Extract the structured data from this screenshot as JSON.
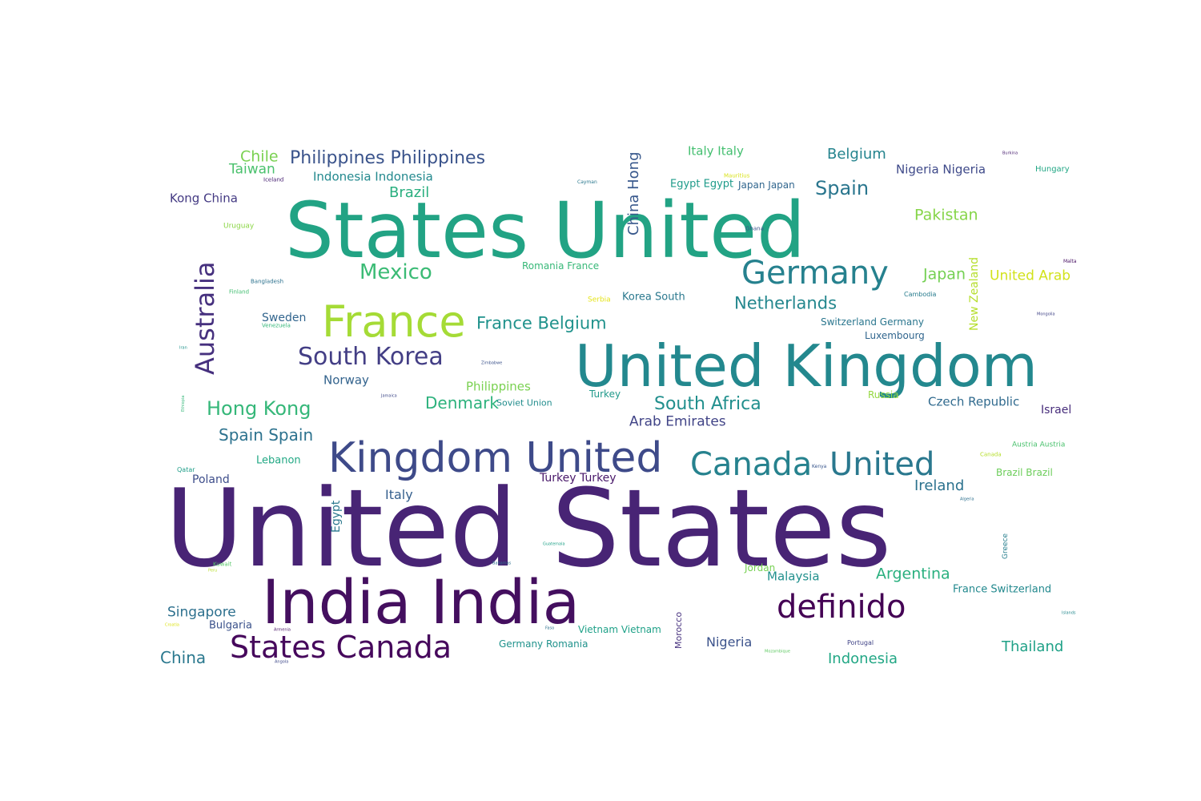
{
  "words": [
    {
      "text": "United States",
      "color": "#482475"
    },
    {
      "text": "States United",
      "color": "#22a384"
    },
    {
      "text": "United Kingdom",
      "color": "#23888e"
    },
    {
      "text": "Kingdom United",
      "color": "#3e4a89"
    },
    {
      "text": "India India",
      "color": "#440f5f"
    },
    {
      "text": "France",
      "color": "#a5db36"
    },
    {
      "text": "Germany",
      "color": "#26818e"
    },
    {
      "text": "Canada",
      "color": "#26828e"
    },
    {
      "text": "United",
      "color": "#2a788e"
    },
    {
      "text": "definido",
      "color": "#440154"
    },
    {
      "text": "States Canada",
      "color": "#46085c"
    },
    {
      "text": "South Korea",
      "color": "#433e85"
    },
    {
      "text": "Australia",
      "color": "#46307e"
    },
    {
      "text": "Mexico",
      "color": "#3bbb75"
    },
    {
      "text": "Philippines Philippines",
      "color": "#3a538b"
    },
    {
      "text": "Hong Kong",
      "color": "#35b779"
    },
    {
      "text": "South Africa",
      "color": "#218f8d"
    },
    {
      "text": "France Belgium",
      "color": "#20928c"
    },
    {
      "text": "Netherlands",
      "color": "#24878e"
    },
    {
      "text": "Spain",
      "color": "#2a768e"
    },
    {
      "text": "Denmark",
      "color": "#2db27d"
    },
    {
      "text": "Spain Spain",
      "color": "#2c728e"
    },
    {
      "text": "Argentina",
      "color": "#2ab07f"
    },
    {
      "text": "Arab Emirates",
      "color": "#414487"
    },
    {
      "text": "Pakistan",
      "color": "#86d549"
    },
    {
      "text": "Japan",
      "color": "#75d054"
    },
    {
      "text": "United Arab",
      "color": "#d2e21b"
    },
    {
      "text": "Belgium",
      "color": "#25848e"
    },
    {
      "text": "Brazil",
      "color": "#29af7f"
    },
    {
      "text": "Chile",
      "color": "#7ad151"
    },
    {
      "text": "Taiwan",
      "color": "#4ac16d"
    },
    {
      "text": "Singapore",
      "color": "#2d708e"
    },
    {
      "text": "China",
      "color": "#2a788e"
    },
    {
      "text": "Thailand",
      "color": "#1fa187"
    },
    {
      "text": "Indonesia",
      "color": "#22a785"
    },
    {
      "text": "Ireland",
      "color": "#2c728e"
    },
    {
      "text": "Nigeria",
      "color": "#3b528b"
    },
    {
      "text": "Malaysia",
      "color": "#21908d"
    },
    {
      "text": "Italy Italy",
      "color": "#44bf70"
    },
    {
      "text": "Indonesia Indonesia",
      "color": "#23898e"
    },
    {
      "text": "Kong China",
      "color": "#443a83"
    },
    {
      "text": "Nigeria Nigeria",
      "color": "#3e4989"
    },
    {
      "text": "Egypt Egypt",
      "color": "#1e9b8a"
    },
    {
      "text": "Japan Japan",
      "color": "#31668e"
    },
    {
      "text": "Hungary",
      "color": "#22a785"
    },
    {
      "text": "Korea South",
      "color": "#2a788e"
    },
    {
      "text": "Romania France",
      "color": "#37b878"
    },
    {
      "text": "Switzerland Germany",
      "color": "#2a768e"
    },
    {
      "text": "Luxembourg",
      "color": "#31668e"
    },
    {
      "text": "Norway",
      "color": "#33638d"
    },
    {
      "text": "Philippines",
      "color": "#7ad151"
    },
    {
      "text": "Sweden",
      "color": "#32658e"
    },
    {
      "text": "Czech Republic",
      "color": "#306a8e"
    },
    {
      "text": "Israel",
      "color": "#472d7b"
    },
    {
      "text": "Russia",
      "color": "#95d840"
    },
    {
      "text": "Turkey",
      "color": "#1f998a"
    },
    {
      "text": "Soviet Union",
      "color": "#228d8d"
    },
    {
      "text": "Lebanon",
      "color": "#22a884"
    },
    {
      "text": "Poland",
      "color": "#3d4d8a"
    },
    {
      "text": "Italy",
      "color": "#355f8d"
    },
    {
      "text": "Turkey Turkey",
      "color": "#481769"
    },
    {
      "text": "Brazil Brazil",
      "color": "#6ccd5a"
    },
    {
      "text": "Austria Austria",
      "color": "#4ac16d"
    },
    {
      "text": "France Switzerland",
      "color": "#23898e"
    },
    {
      "text": "Jordan",
      "color": "#77d153"
    },
    {
      "text": "Bulgaria",
      "color": "#3b528b"
    },
    {
      "text": "Germany Romania",
      "color": "#20928c"
    },
    {
      "text": "Vietnam Vietnam",
      "color": "#1fa188"
    },
    {
      "text": "Uruguay",
      "color": "#8bd646"
    },
    {
      "text": "Bangladesh",
      "color": "#2c718e"
    },
    {
      "text": "Finland",
      "color": "#42be71"
    },
    {
      "text": "Venezuela",
      "color": "#35b779"
    },
    {
      "text": "Serbia",
      "color": "#e5e419"
    },
    {
      "text": "Iceland",
      "color": "#482173"
    },
    {
      "text": "Cayman",
      "color": "#2a788e"
    },
    {
      "text": "Mauritius",
      "color": "#d8e219"
    },
    {
      "text": "Ghana",
      "color": "#3b528b"
    },
    {
      "text": "Burkina",
      "color": "#481f70"
    },
    {
      "text": "Malta",
      "color": "#471063"
    },
    {
      "text": "Cambodia",
      "color": "#287c8e"
    },
    {
      "text": "Mongolia",
      "color": "#414487"
    },
    {
      "text": "Iran",
      "color": "#20928c"
    },
    {
      "text": "Zimbabwe",
      "color": "#3b528b"
    },
    {
      "text": "Jamaica",
      "color": "#3e4989"
    },
    {
      "text": "Kenya",
      "color": "#39568c"
    },
    {
      "text": "Canada",
      "color": "#b5de2b"
    },
    {
      "text": "Algeria",
      "color": "#2d708e"
    },
    {
      "text": "Qatar",
      "color": "#1f9e89"
    },
    {
      "text": "Kuwait",
      "color": "#56c667"
    },
    {
      "text": "Peru",
      "color": "#b8de29"
    },
    {
      "text": "Bahamas",
      "color": "#2d708e"
    },
    {
      "text": "Guatemala",
      "color": "#1fa187"
    },
    {
      "text": "Armenia",
      "color": "#481467"
    },
    {
      "text": "Faso",
      "color": "#2d708e"
    },
    {
      "text": "Croatia",
      "color": "#dde318"
    },
    {
      "text": "Angola",
      "color": "#3e4989"
    },
    {
      "text": "Portugal",
      "color": "#414487"
    },
    {
      "text": "Mozambique",
      "color": "#5ec962"
    },
    {
      "text": "Islands",
      "color": "#23888e"
    },
    {
      "text": "China Hong",
      "color": "#38588c"
    },
    {
      "text": "Egypt",
      "color": "#2a788e"
    },
    {
      "text": "Morocco",
      "color": "#46307e"
    },
    {
      "text": "Greece",
      "color": "#277f8e"
    },
    {
      "text": "Ethiopia",
      "color": "#35b779"
    },
    {
      "text": "New Zealand",
      "color": "#b5de2b"
    }
  ]
}
